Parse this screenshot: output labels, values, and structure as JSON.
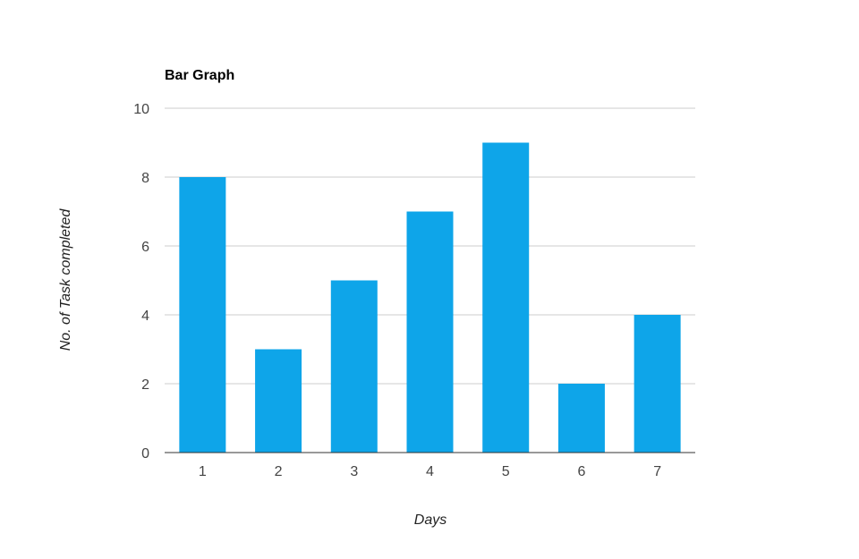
{
  "chart_data": {
    "type": "bar",
    "title": "Bar Graph",
    "xlabel": "Days",
    "ylabel": "No. of Task completed",
    "categories": [
      "1",
      "2",
      "3",
      "4",
      "5",
      "6",
      "7"
    ],
    "values": [
      8,
      3,
      5,
      7,
      9,
      2,
      4
    ],
    "ylim": [
      0,
      10
    ],
    "yticks": [
      "0",
      "2",
      "4",
      "6",
      "8",
      "10"
    ],
    "grid": true,
    "legend": "none",
    "bar_color": "#0ea5e9"
  }
}
